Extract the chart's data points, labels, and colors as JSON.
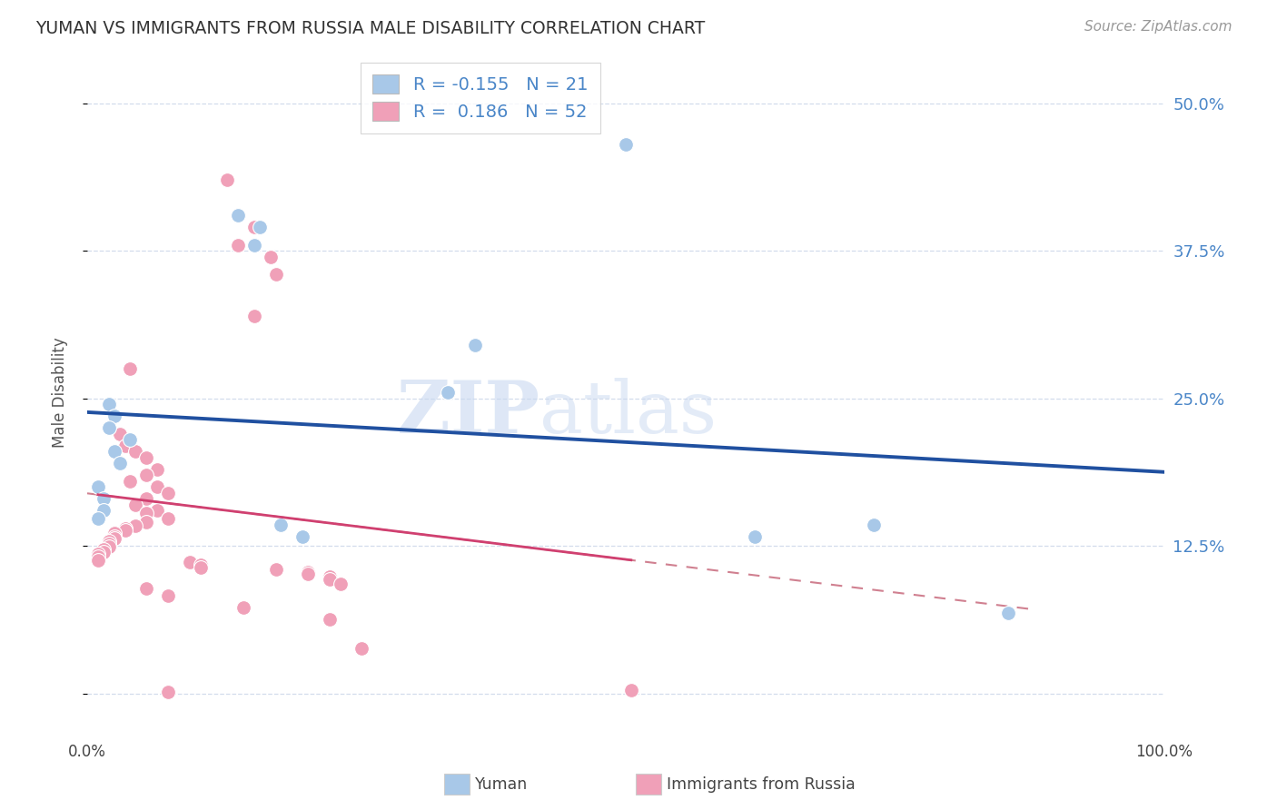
{
  "title": "YUMAN VS IMMIGRANTS FROM RUSSIA MALE DISABILITY CORRELATION CHART",
  "source": "Source: ZipAtlas.com",
  "ylabel": "Male Disability",
  "yticks": [
    0.0,
    0.125,
    0.25,
    0.375,
    0.5
  ],
  "ytick_labels": [
    "",
    "12.5%",
    "25.0%",
    "37.5%",
    "50.0%"
  ],
  "xrange": [
    0.0,
    1.0
  ],
  "yrange": [
    -0.035,
    0.545
  ],
  "legend_blue_R": "-0.155",
  "legend_blue_N": "21",
  "legend_pink_R": "0.186",
  "legend_pink_N": "52",
  "blue_color": "#a8c8e8",
  "pink_color": "#f0a0b8",
  "blue_line_color": "#2050a0",
  "pink_line_color": "#d04070",
  "dashed_line_color": "#d08090",
  "watermark_zip": "ZIP",
  "watermark_atlas": "atlas",
  "blue_points": [
    [
      0.02,
      0.245
    ],
    [
      0.5,
      0.465
    ],
    [
      0.14,
      0.405
    ],
    [
      0.16,
      0.395
    ],
    [
      0.155,
      0.38
    ],
    [
      0.36,
      0.295
    ],
    [
      0.335,
      0.255
    ],
    [
      0.025,
      0.235
    ],
    [
      0.02,
      0.225
    ],
    [
      0.04,
      0.215
    ],
    [
      0.025,
      0.205
    ],
    [
      0.03,
      0.195
    ],
    [
      0.01,
      0.175
    ],
    [
      0.015,
      0.165
    ],
    [
      0.015,
      0.155
    ],
    [
      0.01,
      0.148
    ],
    [
      0.18,
      0.143
    ],
    [
      0.2,
      0.133
    ],
    [
      0.62,
      0.133
    ],
    [
      0.73,
      0.143
    ],
    [
      0.855,
      0.068
    ]
  ],
  "pink_points": [
    [
      0.13,
      0.435
    ],
    [
      0.155,
      0.395
    ],
    [
      0.14,
      0.38
    ],
    [
      0.17,
      0.37
    ],
    [
      0.175,
      0.355
    ],
    [
      0.155,
      0.32
    ],
    [
      0.04,
      0.275
    ],
    [
      0.03,
      0.22
    ],
    [
      0.035,
      0.21
    ],
    [
      0.045,
      0.205
    ],
    [
      0.055,
      0.2
    ],
    [
      0.065,
      0.19
    ],
    [
      0.055,
      0.185
    ],
    [
      0.04,
      0.18
    ],
    [
      0.065,
      0.175
    ],
    [
      0.075,
      0.17
    ],
    [
      0.055,
      0.165
    ],
    [
      0.045,
      0.16
    ],
    [
      0.065,
      0.155
    ],
    [
      0.055,
      0.153
    ],
    [
      0.075,
      0.148
    ],
    [
      0.055,
      0.145
    ],
    [
      0.045,
      0.142
    ],
    [
      0.035,
      0.14
    ],
    [
      0.035,
      0.138
    ],
    [
      0.025,
      0.136
    ],
    [
      0.025,
      0.133
    ],
    [
      0.025,
      0.131
    ],
    [
      0.02,
      0.129
    ],
    [
      0.02,
      0.127
    ],
    [
      0.02,
      0.124
    ],
    [
      0.015,
      0.122
    ],
    [
      0.015,
      0.12
    ],
    [
      0.01,
      0.118
    ],
    [
      0.01,
      0.116
    ],
    [
      0.01,
      0.113
    ],
    [
      0.095,
      0.111
    ],
    [
      0.105,
      0.109
    ],
    [
      0.105,
      0.107
    ],
    [
      0.175,
      0.105
    ],
    [
      0.205,
      0.103
    ],
    [
      0.205,
      0.101
    ],
    [
      0.225,
      0.099
    ],
    [
      0.225,
      0.097
    ],
    [
      0.235,
      0.093
    ],
    [
      0.055,
      0.089
    ],
    [
      0.075,
      0.083
    ],
    [
      0.145,
      0.073
    ],
    [
      0.225,
      0.063
    ],
    [
      0.255,
      0.038
    ],
    [
      0.505,
      0.003
    ],
    [
      0.075,
      0.001
    ]
  ]
}
